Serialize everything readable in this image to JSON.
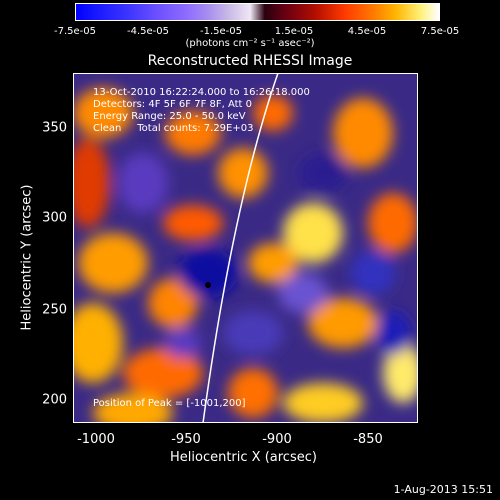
{
  "colorbar": {
    "ticks": [
      "-7.5e-05",
      "-4.5e-05",
      "-1.5e-05",
      "1.5e-05",
      "4.5e-05",
      "7.5e-05"
    ],
    "units": "(photons cm⁻² s⁻¹ asec⁻²)"
  },
  "title": "Reconstructed RHESSI Image",
  "annotations": {
    "time": "13-Oct-2010 16:22:24.000 to 16:26:18.000",
    "detectors": "Detectors: 4F 5F 6F 7F 8F, Att 0",
    "energy": "Energy Range: 25.0 - 50.0 keV",
    "clean": "Clean     Total counts: 7.29E+03",
    "peak": "Position of Peak = [-1001,200]"
  },
  "axes": {
    "xlabel": "Heliocentric X (arcsec)",
    "ylabel": "Heliocentric Y (arcsec)",
    "xticks": [
      "-1000",
      "-950",
      "-900",
      "-850"
    ],
    "yticks": [
      "350",
      "300",
      "250",
      "200"
    ]
  },
  "footer": {
    "date": "1-Aug-2013 15:51"
  },
  "colors": {
    "cold": "#2b1e6e",
    "hot": "#ff9a00",
    "limb": "#ffffff"
  }
}
